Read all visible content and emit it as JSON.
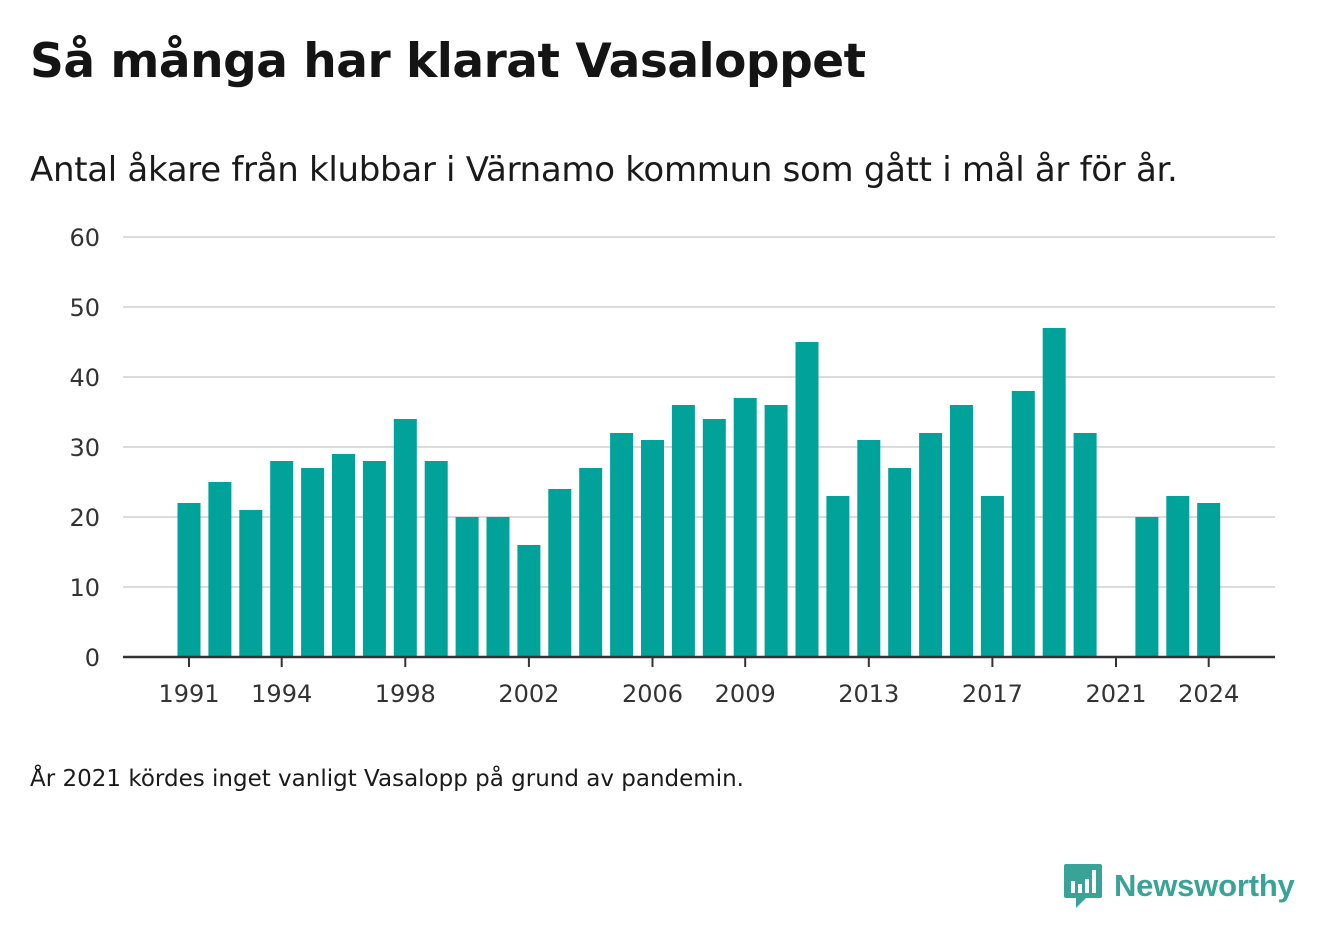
{
  "header": {
    "title": "Så många har klarat Vasaloppet",
    "subtitle": "Antal åkare från klubbar i Värnamo kommun som gått i mål år för år."
  },
  "footnote": "År 2021 kördes inget vanligt Vasalopp på grund av pandemin.",
  "brand": {
    "name": "Newsworthy",
    "color": "#3aa398"
  },
  "chart_data": {
    "type": "bar",
    "x": [
      1991,
      1992,
      1993,
      1994,
      1995,
      1996,
      1997,
      1998,
      1999,
      2000,
      2001,
      2002,
      2003,
      2004,
      2005,
      2006,
      2007,
      2008,
      2009,
      2010,
      2011,
      2012,
      2013,
      2014,
      2015,
      2016,
      2017,
      2018,
      2019,
      2020,
      2021,
      2022,
      2023,
      2024
    ],
    "values": [
      22,
      25,
      21,
      28,
      27,
      29,
      28,
      34,
      28,
      20,
      20,
      16,
      24,
      27,
      32,
      31,
      36,
      34,
      37,
      36,
      45,
      23,
      31,
      27,
      32,
      36,
      23,
      38,
      47,
      32,
      null,
      20,
      23,
      22
    ],
    "x_tick_labels": [
      "1991",
      "1994",
      "1998",
      "2002",
      "2006",
      "2009",
      "2013",
      "2017",
      "2021",
      "2024"
    ],
    "y_ticks": [
      0,
      10,
      20,
      30,
      40,
      50,
      60
    ],
    "ylim": [
      0,
      60
    ],
    "bar_color": "#00a29a",
    "grid": true,
    "title": "",
    "xlabel": "",
    "ylabel": ""
  }
}
